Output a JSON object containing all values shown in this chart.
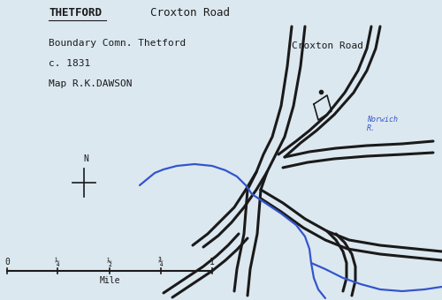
{
  "title_left": "THETFORD",
  "title_right": "Croxton Road",
  "info_line1": "Boundary Comn. Thetford",
  "info_line2": "c. 1831",
  "info_line3": "Map R.K.DAWSON",
  "croxton_road_label": "Croxton Road",
  "norwich_label": "Norwich\nR.",
  "north_label": "N",
  "scale_label": "Mile",
  "scale_ticks": [
    "0",
    "¼",
    "½",
    "¾",
    "1"
  ],
  "bg_color": "#dce8f0",
  "road_color": "#1a1a1a",
  "river_color": "#3355cc",
  "text_color": "#1a1a1a",
  "road_linewidth": 2.2,
  "river_linewidth": 1.6
}
